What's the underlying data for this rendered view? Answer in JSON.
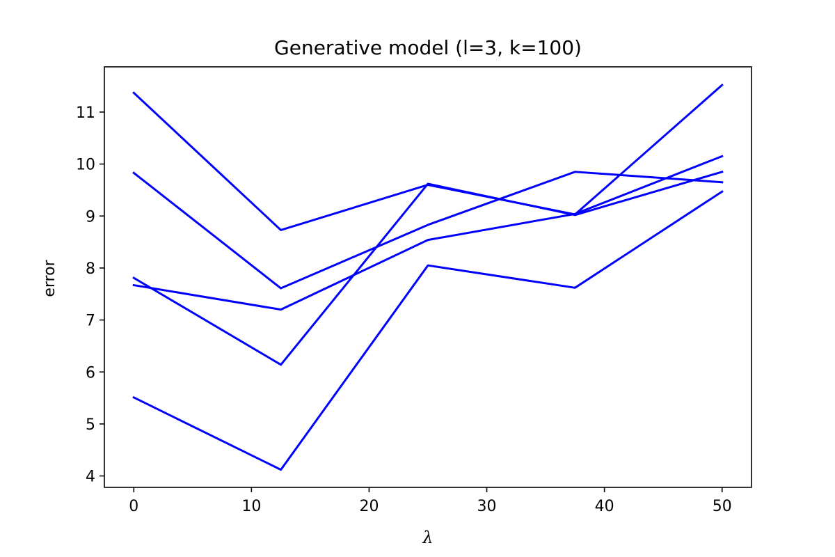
{
  "chart_data": {
    "type": "line",
    "title": "Generative model (l=3, k=100)",
    "xlabel": "λ",
    "ylabel": "error",
    "x": [
      0,
      12.5,
      25,
      37.5,
      50
    ],
    "xticks": [
      0,
      10,
      20,
      30,
      40,
      50
    ],
    "yticks": [
      4,
      5,
      6,
      7,
      8,
      9,
      10,
      11
    ],
    "xlim": [
      -2.5,
      52.5
    ],
    "ylim": [
      3.78,
      11.87
    ],
    "grid": false,
    "line_color": "#0000ff",
    "series": [
      {
        "values": [
          11.37,
          8.73,
          9.6,
          9.03,
          11.52
        ]
      },
      {
        "values": [
          9.83,
          7.61,
          8.83,
          9.85,
          9.65
        ]
      },
      {
        "values": [
          7.81,
          6.14,
          9.62,
          9.02,
          9.85
        ]
      },
      {
        "values": [
          7.67,
          7.2,
          8.54,
          9.04,
          10.15
        ]
      },
      {
        "values": [
          5.51,
          4.12,
          8.05,
          7.62,
          9.47
        ]
      }
    ]
  }
}
